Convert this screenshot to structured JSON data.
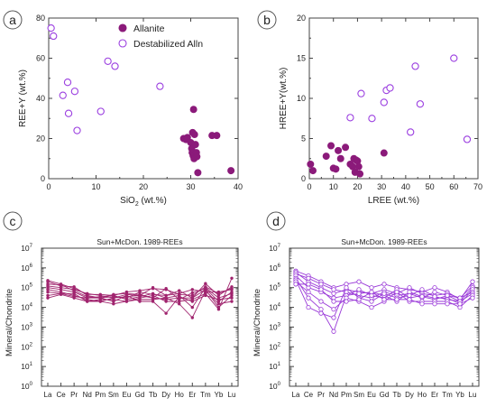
{
  "colors": {
    "allanite": "#8b1a7a",
    "destab": "#9b3fe0",
    "ree_c": "#a0246e",
    "ree_d": "#9a3ad8",
    "axis": "#444444"
  },
  "chart_data": [
    {
      "id": "a",
      "type": "scatter",
      "panel_label": "a",
      "xlabel": "SiO",
      "xlabel_sub": "2",
      "xlabel_suffix": " (wt.%)",
      "ylabel": "REE+Y (wt.%)",
      "xlim": [
        0,
        40
      ],
      "ylim": [
        0,
        80
      ],
      "xticks": [
        0,
        10,
        20,
        30,
        40
      ],
      "yticks": [
        0,
        20,
        40,
        60,
        80
      ],
      "legend_position": "top-right",
      "series": [
        {
          "name": "Allanite",
          "marker": "filled",
          "points": [
            [
              28.5,
              20
            ],
            [
              29,
              19.5
            ],
            [
              29.3,
              20.5
            ],
            [
              30,
              18
            ],
            [
              30.2,
              15
            ],
            [
              30.3,
              13
            ],
            [
              30.5,
              11.5
            ],
            [
              30.7,
              10
            ],
            [
              30.4,
              23
            ],
            [
              30.8,
              22
            ],
            [
              30.6,
              34.5
            ],
            [
              31,
              17
            ],
            [
              31.2,
              13
            ],
            [
              31.3,
              11
            ],
            [
              31.5,
              3
            ],
            [
              34.5,
              21.5
            ],
            [
              35.5,
              21.5
            ],
            [
              38.5,
              4
            ]
          ]
        },
        {
          "name": "Destabilized Alln",
          "marker": "open",
          "points": [
            [
              0.5,
              75
            ],
            [
              1,
              71
            ],
            [
              3,
              41.5
            ],
            [
              4,
              48
            ],
            [
              4.2,
              32.5
            ],
            [
              5.5,
              43.5
            ],
            [
              6,
              24
            ],
            [
              11,
              33.5
            ],
            [
              12.5,
              58.5
            ],
            [
              14,
              56
            ],
            [
              23.5,
              46
            ]
          ]
        }
      ]
    },
    {
      "id": "b",
      "type": "scatter",
      "panel_label": "b",
      "xlabel": "LREE (wt.%)",
      "ylabel": "HREE+Y(wt.%)",
      "xlim": [
        0,
        70
      ],
      "ylim": [
        0,
        20
      ],
      "xticks": [
        0,
        10,
        20,
        30,
        40,
        50,
        60,
        70
      ],
      "yticks": [
        0,
        5,
        10,
        15,
        20
      ],
      "series": [
        {
          "name": "",
          "marker": "filled",
          "points": [
            [
              0.5,
              1.8
            ],
            [
              1.5,
              1
            ],
            [
              7,
              2.8
            ],
            [
              9,
              4.1
            ],
            [
              10,
              1.3
            ],
            [
              11,
              1.2
            ],
            [
              12,
              3.5
            ],
            [
              13,
              2.5
            ],
            [
              15,
              3.9
            ],
            [
              17,
              1.8
            ],
            [
              18,
              1.5
            ],
            [
              18.5,
              2.5
            ],
            [
              19,
              0.8
            ],
            [
              19.5,
              2.3
            ],
            [
              20,
              2.2
            ],
            [
              20.5,
              1.5
            ],
            [
              21,
              0.6
            ],
            [
              31,
              3.2
            ]
          ]
        },
        {
          "name": "",
          "marker": "open",
          "points": [
            [
              17,
              7.6
            ],
            [
              21.5,
              10.6
            ],
            [
              26,
              7.5
            ],
            [
              31,
              9.5
            ],
            [
              32,
              11
            ],
            [
              33.5,
              11.3
            ],
            [
              42,
              5.8
            ],
            [
              44,
              14
            ],
            [
              46,
              9.3
            ],
            [
              60,
              15
            ],
            [
              65.5,
              4.9
            ]
          ]
        }
      ]
    },
    {
      "id": "c",
      "type": "line",
      "panel_label": "c",
      "title": "Sun+McDon. 1989-REEs",
      "ylabel": "Mineral/Chondrite",
      "yscale": "log",
      "ylim_exp": [
        0,
        7
      ],
      "ytick_labels": [
        "10",
        "10",
        "10",
        "10",
        "10",
        "10",
        "10",
        "10"
      ],
      "ytick_exps": [
        "0",
        "1",
        "2",
        "3",
        "4",
        "5",
        "6",
        "7"
      ],
      "categories": [
        "La",
        "Ce",
        "Pr",
        "Nd",
        "Pm",
        "Sm",
        "Eu",
        "Gd",
        "Tb",
        "Dy",
        "Ho",
        "Er",
        "Tm",
        "Yb",
        "Lu"
      ],
      "series": [
        {
          "name": "",
          "values": [
            230000,
            150000,
            90000,
            45000,
            45000,
            40000,
            60000,
            70000,
            90000,
            80000,
            45000,
            40000,
            110000,
            50000,
            90000
          ]
        },
        {
          "name": "",
          "values": [
            200000,
            120000,
            110000,
            40000,
            30000,
            35000,
            30000,
            60000,
            45000,
            40000,
            70000,
            30000,
            160000,
            40000,
            110000
          ]
        },
        {
          "name": "",
          "values": [
            150000,
            140000,
            70000,
            35000,
            30000,
            45000,
            50000,
            45000,
            30000,
            90000,
            25000,
            55000,
            90000,
            20000,
            60000
          ]
        },
        {
          "name": "",
          "values": [
            120000,
            100000,
            80000,
            50000,
            40000,
            30000,
            45000,
            40000,
            100000,
            40000,
            50000,
            80000,
            60000,
            60000,
            80000
          ]
        },
        {
          "name": "",
          "values": [
            100000,
            80000,
            60000,
            30000,
            35000,
            40000,
            25000,
            35000,
            50000,
            30000,
            40000,
            10000,
            100000,
            30000,
            50000
          ]
        },
        {
          "name": "",
          "values": [
            80000,
            60000,
            40000,
            25000,
            20000,
            30000,
            35000,
            40000,
            30000,
            25000,
            30000,
            30000,
            80000,
            10000,
            40000
          ]
        },
        {
          "name": "",
          "values": [
            60000,
            50000,
            50000,
            20000,
            25000,
            25000,
            20000,
            30000,
            40000,
            20000,
            20000,
            25000,
            50000,
            8000,
            300000
          ]
        },
        {
          "name": "",
          "values": [
            40000,
            50000,
            35000,
            30000,
            30000,
            20000,
            40000,
            20000,
            20000,
            5000,
            35000,
            20000,
            40000,
            25000,
            30000
          ]
        },
        {
          "name": "",
          "values": [
            30000,
            45000,
            30000,
            20000,
            20000,
            15000,
            20000,
            25000,
            25000,
            30000,
            15000,
            3000,
            70000,
            15000,
            20000
          ]
        }
      ]
    },
    {
      "id": "d",
      "type": "line",
      "panel_label": "d",
      "title": "Sun+McDon. 1989-REEs",
      "ylabel": "Mineral/Chondrite",
      "yscale": "log",
      "ylim_exp": [
        0,
        7
      ],
      "ytick_labels": [
        "10",
        "10",
        "10",
        "10",
        "10",
        "10",
        "10",
        "10"
      ],
      "ytick_exps": [
        "0",
        "1",
        "2",
        "3",
        "4",
        "5",
        "6",
        "7"
      ],
      "categories": [
        "La",
        "Ce",
        "Pr",
        "Nd",
        "Pm",
        "Sm",
        "Eu",
        "Gd",
        "Tb",
        "Dy",
        "Ho",
        "Er",
        "Tm",
        "Yb",
        "Lu"
      ],
      "series": [
        {
          "name": "",
          "values": [
            700000,
            400000,
            200000,
            100000,
            150000,
            200000,
            100000,
            150000,
            100000,
            80000,
            60000,
            100000,
            60000,
            25000,
            200000
          ]
        },
        {
          "name": "",
          "values": [
            600000,
            200000,
            100000,
            50000,
            80000,
            60000,
            50000,
            80000,
            50000,
            100000,
            50000,
            40000,
            50000,
            30000,
            120000
          ]
        },
        {
          "name": "",
          "values": [
            500000,
            300000,
            150000,
            80000,
            60000,
            40000,
            30000,
            60000,
            40000,
            50000,
            30000,
            60000,
            40000,
            20000,
            100000
          ]
        },
        {
          "name": "",
          "values": [
            400000,
            100000,
            60000,
            30000,
            40000,
            80000,
            40000,
            30000,
            80000,
            30000,
            40000,
            30000,
            30000,
            15000,
            80000
          ]
        },
        {
          "name": "",
          "values": [
            300000,
            30000,
            8000,
            600,
            40000,
            50000,
            60000,
            40000,
            20000,
            60000,
            35000,
            25000,
            40000,
            30000,
            60000
          ]
        },
        {
          "name": "",
          "values": [
            250000,
            10000,
            5000,
            3000,
            100000,
            30000,
            20000,
            50000,
            30000,
            40000,
            80000,
            35000,
            25000,
            20000,
            50000
          ]
        },
        {
          "name": "",
          "values": [
            200000,
            60000,
            20000,
            8000,
            30000,
            20000,
            10000,
            20000,
            60000,
            20000,
            20000,
            20000,
            20000,
            10000,
            40000
          ]
        },
        {
          "name": "",
          "values": [
            150000,
            150000,
            80000,
            20000,
            20000,
            25000,
            60000,
            25000,
            25000,
            25000,
            15000,
            15000,
            15000,
            15000,
            30000
          ]
        }
      ]
    }
  ]
}
